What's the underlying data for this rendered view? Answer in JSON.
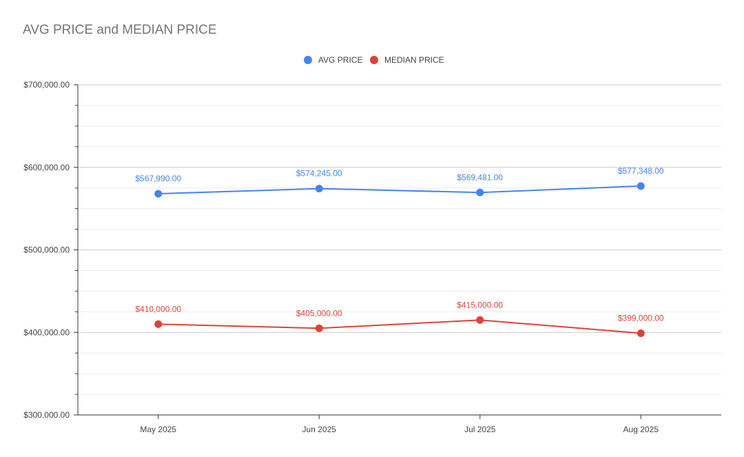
{
  "chart_data": {
    "type": "line",
    "title": "AVG PRICE and MEDIAN PRICE",
    "categories": [
      "May 2025",
      "Jun 2025",
      "Jul 2025",
      "Aug 2025"
    ],
    "series": [
      {
        "name": "AVG PRICE",
        "color": "#4285f4",
        "values": [
          567990,
          574245,
          569481,
          577348
        ],
        "labels": [
          "$567,990.00",
          "$574,245.00",
          "$569,481.00",
          "$577,348.00"
        ]
      },
      {
        "name": "MEDIAN PRICE",
        "color": "#db4437",
        "values": [
          410000,
          405000,
          415000,
          399000
        ],
        "labels": [
          "$410,000.00",
          "$405,000.00",
          "$415,000.00",
          "$399,000.00"
        ]
      }
    ],
    "ylim": [
      300000,
      700000
    ],
    "y_ticks": [
      300000,
      400000,
      500000,
      600000,
      700000
    ],
    "y_tick_labels": [
      "$300,000.00",
      "$400,000.00",
      "$500,000.00",
      "$600,000.00",
      "$700,000.00"
    ],
    "xlabel": "",
    "ylabel": "",
    "legend_position": "top-center",
    "grid": true
  }
}
